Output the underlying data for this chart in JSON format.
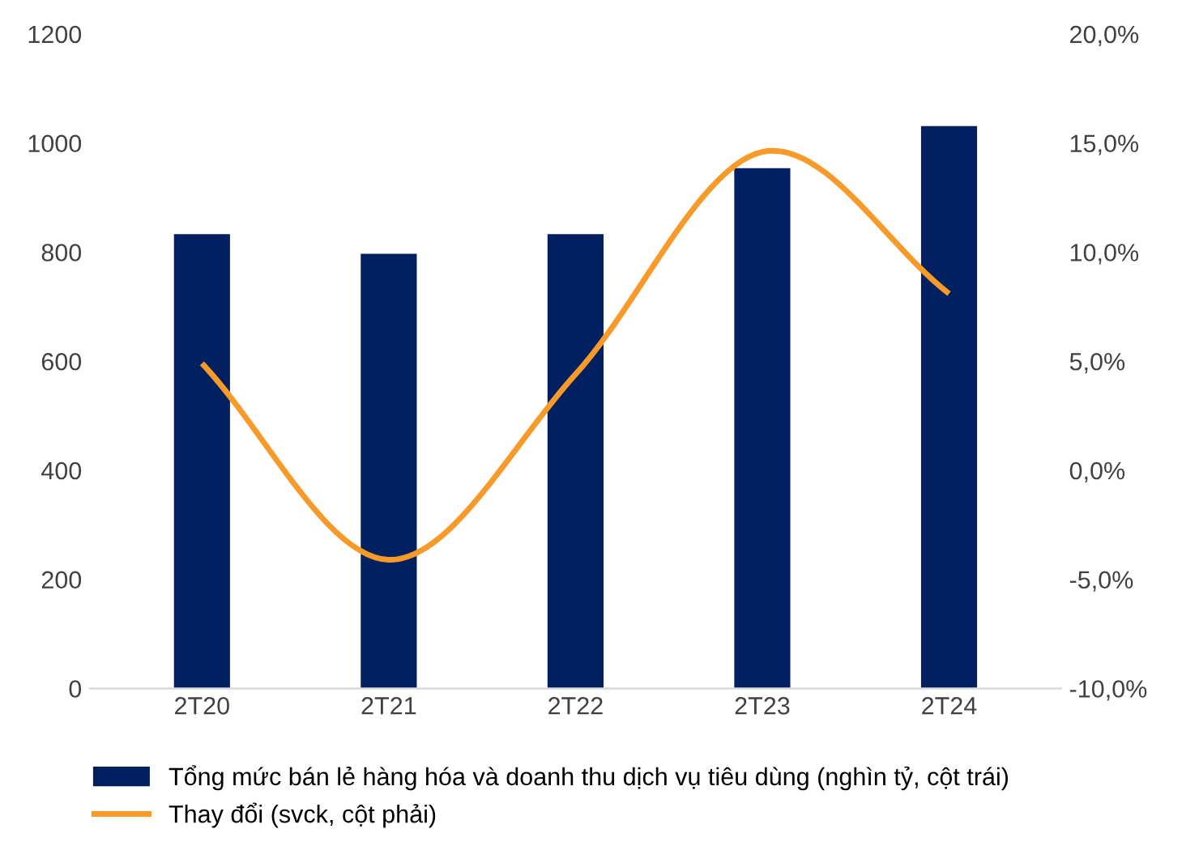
{
  "chart_data": {
    "type": "bar",
    "categories": [
      "2T20",
      "2T21",
      "2T22",
      "2T23",
      "2T24"
    ],
    "series": [
      {
        "name": "Tổng mức bán lẻ hàng hóa và doanh thu dịch vụ tiêu dùng (nghìn tỷ, cột trái)",
        "color": "#002060",
        "values": [
          833,
          797,
          833,
          954,
          1031
        ]
      },
      {
        "name": "Thay đổi (svck, cột phải)",
        "type": "line",
        "axis": "y2",
        "color": "#f79a2a",
        "values": [
          4.9,
          -4.1,
          4.4,
          14.6,
          8.1
        ]
      }
    ],
    "ylim": [
      0,
      1200
    ],
    "yticks": [
      0,
      200,
      400,
      600,
      800,
      1000,
      1200
    ],
    "y2lim": [
      -10,
      20
    ],
    "y2ticks": [
      {
        "value": -10,
        "label": "-10,0%"
      },
      {
        "value": -5,
        "label": "-5,0%"
      },
      {
        "value": 0,
        "label": "0,0%"
      },
      {
        "value": 5,
        "label": "5,0%"
      },
      {
        "value": 10,
        "label": "10,0%"
      },
      {
        "value": 15,
        "label": "15,0%"
      },
      {
        "value": 20,
        "label": "20,0%"
      }
    ],
    "legend": "bottom",
    "grid": false,
    "marker": "none",
    "line_style": "solid"
  }
}
